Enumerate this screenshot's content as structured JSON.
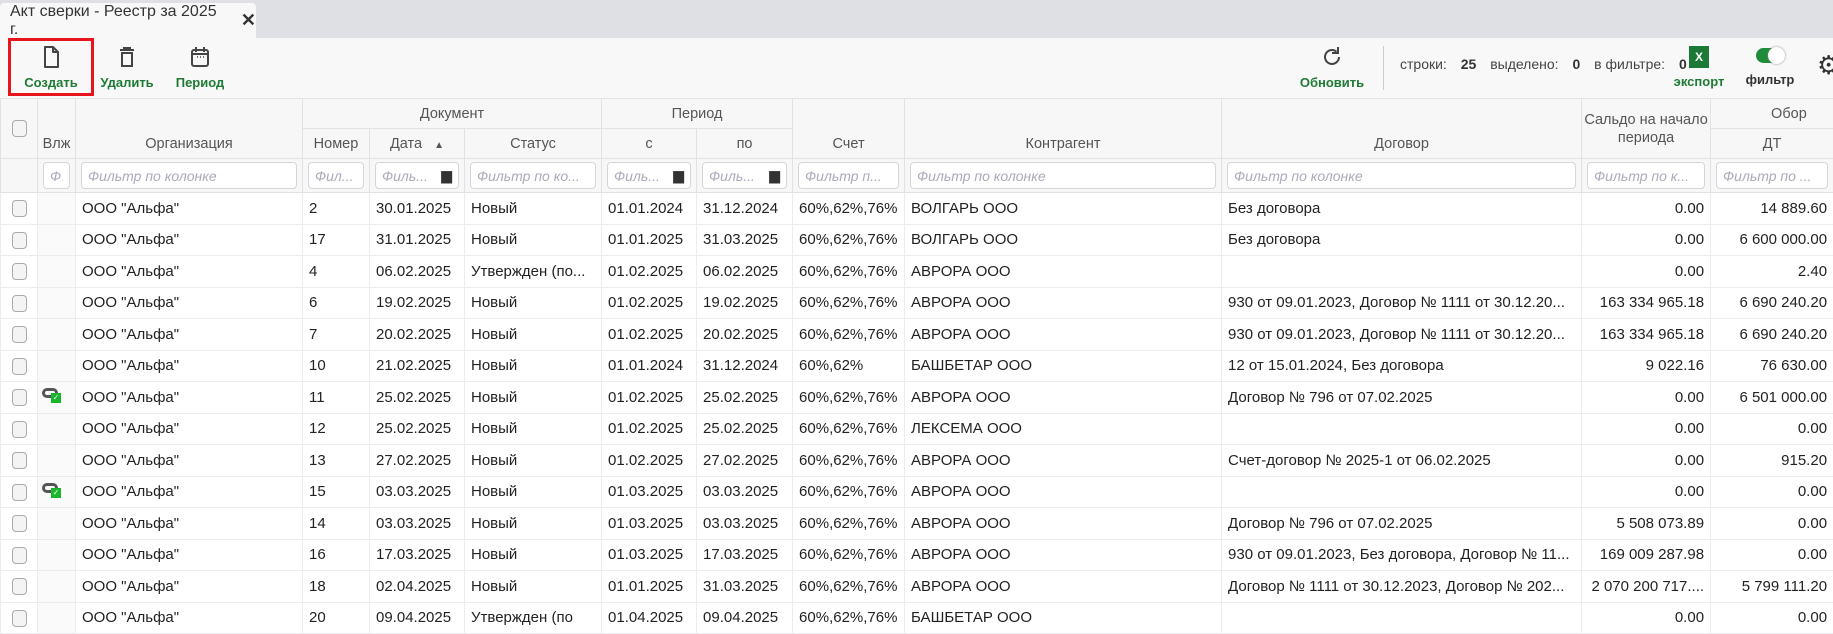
{
  "tab": {
    "title": "Акт сверки - Реестр за 2025 г.",
    "close": "✕"
  },
  "toolbar": {
    "create": "Создать",
    "delete": "Удалить",
    "period": "Период",
    "refresh": "Обновить",
    "stats": {
      "rows_label": "строки:",
      "rows": "25",
      "selected_label": "выделено:",
      "selected": "0",
      "filtered_label": "в фильтре:",
      "filtered": "0"
    },
    "export_icon_text": "X",
    "export": "экспорт",
    "filter": "фильтр",
    "filter_on": true
  },
  "colors": {
    "accent": "#1e7a34",
    "highlight": "#e8141c",
    "attach_ok": "#19b52c"
  },
  "header": {
    "attach": "Влж",
    "org": "Организация",
    "document": "Документ",
    "number": "Номер",
    "date": "Дата",
    "status": "Статус",
    "period": "Период",
    "from": "с",
    "to": "по",
    "account": "Счет",
    "counterparty": "Контрагент",
    "contract": "Договор",
    "balance": "Сальдо на начало периода",
    "turnover": "Обор",
    "dt": "ДТ"
  },
  "filters": {
    "attach": "Ф.",
    "org": "Фильтр по колонке",
    "number": "Фил...",
    "date": "Филь...",
    "status": "Фильтр по ко...",
    "from": "Филь...",
    "to": "Филь...",
    "account": "Фильтр п...",
    "counterparty": "Фильтр по колонке",
    "contract": "Фильтр по колонке",
    "balance": "Фильтр по к...",
    "dt": "Фильтр по ..."
  },
  "rows": [
    {
      "attach": false,
      "org": "ООО \"Альфа\"",
      "number": "2",
      "date": "30.01.2025",
      "status": "Новый",
      "from": "01.01.2024",
      "to": "31.12.2024",
      "account": "60%,62%,76%",
      "counterparty": "ВОЛГАРЬ ООО",
      "contract": "Без договора",
      "balance": "0.00",
      "dt": "14 889.60"
    },
    {
      "attach": false,
      "org": "ООО \"Альфа\"",
      "number": "17",
      "date": "31.01.2025",
      "status": "Новый",
      "from": "01.01.2025",
      "to": "31.03.2025",
      "account": "60%,62%,76%",
      "counterparty": "ВОЛГАРЬ ООО",
      "contract": "Без договора",
      "balance": "0.00",
      "dt": "6 600 000.00"
    },
    {
      "attach": false,
      "org": "ООО \"Альфа\"",
      "number": "4",
      "date": "06.02.2025",
      "status": "Утвержден (по...",
      "from": "01.02.2025",
      "to": "06.02.2025",
      "account": "60%,62%,76%",
      "counterparty": "АВРОРА ООО",
      "contract": "",
      "balance": "0.00",
      "dt": "2.40"
    },
    {
      "attach": false,
      "org": "ООО \"Альфа\"",
      "number": "6",
      "date": "19.02.2025",
      "status": "Новый",
      "from": "01.02.2025",
      "to": "19.02.2025",
      "account": "60%,62%,76%",
      "counterparty": "АВРОРА ООО",
      "contract": "930 от 09.01.2023, Договор № 1111 от 30.12.20...",
      "balance": "163 334 965.18",
      "dt": "6 690 240.20"
    },
    {
      "attach": false,
      "org": "ООО \"Альфа\"",
      "number": "7",
      "date": "20.02.2025",
      "status": "Новый",
      "from": "01.02.2025",
      "to": "20.02.2025",
      "account": "60%,62%,76%",
      "counterparty": "АВРОРА ООО",
      "contract": "930 от 09.01.2023, Договор № 1111 от 30.12.20...",
      "balance": "163 334 965.18",
      "dt": "6 690 240.20"
    },
    {
      "attach": false,
      "org": "ООО \"Альфа\"",
      "number": "10",
      "date": "21.02.2025",
      "status": "Новый",
      "from": "01.01.2024",
      "to": "31.12.2024",
      "account": "60%,62%",
      "counterparty": "БАШБЕТАР ООО",
      "contract": "12 от 15.01.2024, Без договора",
      "balance": "9 022.16",
      "dt": "76 630.00"
    },
    {
      "attach": true,
      "org": "ООО \"Альфа\"",
      "number": "11",
      "date": "25.02.2025",
      "status": "Новый",
      "from": "01.02.2025",
      "to": "25.02.2025",
      "account": "60%,62%,76%",
      "counterparty": "АВРОРА ООО",
      "contract": "Договор № 796 от 07.02.2025",
      "balance": "0.00",
      "dt": "6 501 000.00"
    },
    {
      "attach": false,
      "org": "ООО \"Альфа\"",
      "number": "12",
      "date": "25.02.2025",
      "status": "Новый",
      "from": "01.02.2025",
      "to": "25.02.2025",
      "account": "60%,62%,76%",
      "counterparty": "ЛЕКСЕМА ООО",
      "contract": "",
      "balance": "0.00",
      "dt": "0.00"
    },
    {
      "attach": false,
      "org": "ООО \"Альфа\"",
      "number": "13",
      "date": "27.02.2025",
      "status": "Новый",
      "from": "01.02.2025",
      "to": "27.02.2025",
      "account": "60%,62%,76%",
      "counterparty": "АВРОРА ООО",
      "contract": "Счет-договор № 2025-1 от 06.02.2025",
      "balance": "0.00",
      "dt": "915.20"
    },
    {
      "attach": true,
      "org": "ООО \"Альфа\"",
      "number": "15",
      "date": "03.03.2025",
      "status": "Новый",
      "from": "01.03.2025",
      "to": "03.03.2025",
      "account": "60%,62%,76%",
      "counterparty": "АВРОРА ООО",
      "contract": "",
      "balance": "0.00",
      "dt": "0.00"
    },
    {
      "attach": false,
      "org": "ООО \"Альфа\"",
      "number": "14",
      "date": "03.03.2025",
      "status": "Новый",
      "from": "01.03.2025",
      "to": "03.03.2025",
      "account": "60%,62%,76%",
      "counterparty": "АВРОРА ООО",
      "contract": "Договор № 796 от 07.02.2025",
      "balance": "5 508 073.89",
      "dt": "0.00"
    },
    {
      "attach": false,
      "org": "ООО \"Альфа\"",
      "number": "16",
      "date": "17.03.2025",
      "status": "Новый",
      "from": "01.03.2025",
      "to": "17.03.2025",
      "account": "60%,62%,76%",
      "counterparty": "АВРОРА ООО",
      "contract": "930 от 09.01.2023, Без договора, Договор № 11...",
      "balance": "169 009 287.98",
      "dt": "0.00"
    },
    {
      "attach": false,
      "org": "ООО \"Альфа\"",
      "number": "18",
      "date": "02.04.2025",
      "status": "Новый",
      "from": "01.01.2025",
      "to": "31.03.2025",
      "account": "60%,62%,76%",
      "counterparty": "АВРОРА ООО",
      "contract": "Договор № 1111 от 30.12.2023, Договор № 202...",
      "balance": "2 070 200 717....",
      "dt": "5 799 111.20"
    },
    {
      "attach": false,
      "org": "ООО \"Альфа\"",
      "number": "20",
      "date": "09.04.2025",
      "status": "Утвержден (по",
      "from": "01.04.2025",
      "to": "09.04.2025",
      "account": "60%,62%,76%",
      "counterparty": "БАШБЕТАР ООО",
      "contract": "",
      "balance": "0.00",
      "dt": "0.00"
    }
  ]
}
